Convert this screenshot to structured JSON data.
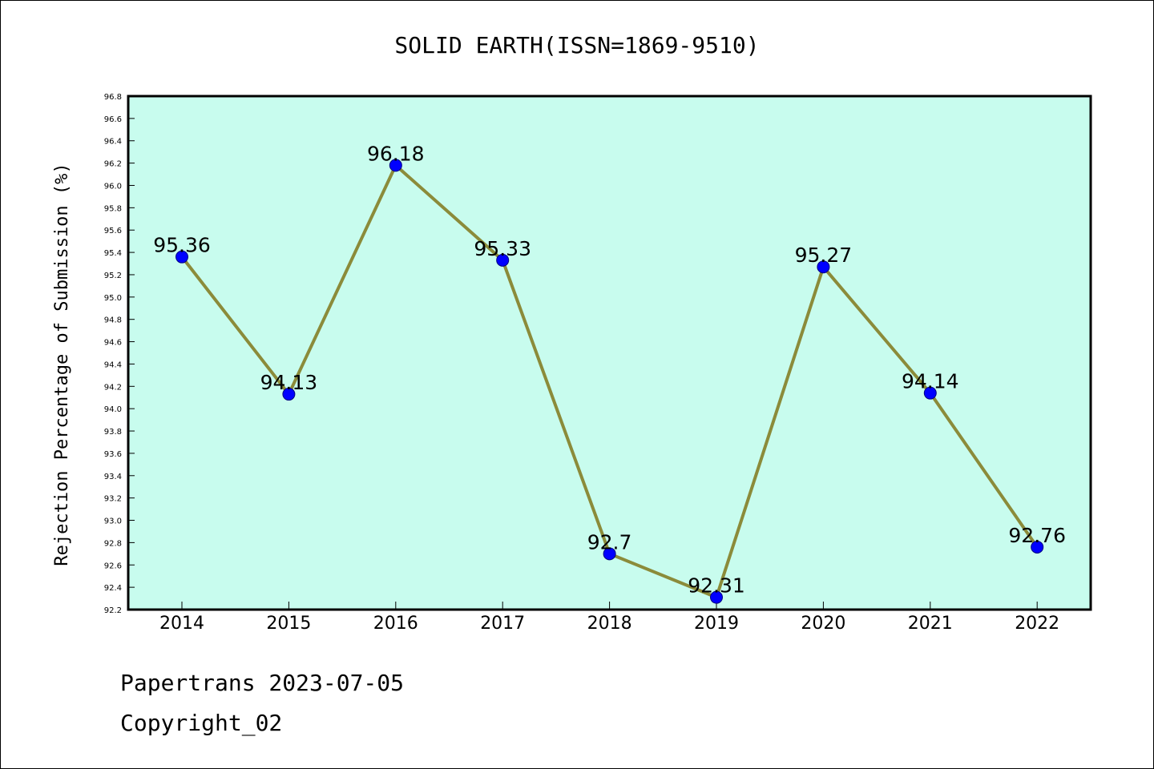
{
  "chart_data": {
    "type": "line",
    "title": "SOLID EARTH(ISSN=1869-9510)",
    "xlabel": "",
    "ylabel": "Rejection Percentage of Submission (%)",
    "categories": [
      "2014",
      "2015",
      "2016",
      "2017",
      "2018",
      "2019",
      "2020",
      "2021",
      "2022"
    ],
    "series": [
      {
        "values": [
          95.36,
          94.13,
          96.18,
          95.33,
          92.7,
          92.31,
          95.27,
          94.14,
          92.76
        ],
        "labels": [
          "95.36",
          "94.13",
          "96.18",
          "95.33",
          "92.7",
          "92.31",
          "95.27",
          "94.14",
          "92.76"
        ]
      }
    ],
    "ylim": [
      92.2,
      96.8
    ],
    "yticks": [
      "92.2",
      "92.4",
      "92.6",
      "92.8",
      "93.0",
      "93.2",
      "93.4",
      "93.6",
      "93.8",
      "94.0",
      "94.2",
      "94.4",
      "94.6",
      "94.8",
      "95.0",
      "95.2",
      "95.4",
      "95.6",
      "95.8",
      "96.0",
      "96.2",
      "96.4",
      "96.6",
      "96.8"
    ],
    "grid": false,
    "legend": "none",
    "colors": {
      "plot_background": "#c8fcee",
      "line": "#8b8b3a",
      "marker_fill": "#0000ff",
      "marker_edge": "#000080",
      "axis": "#000000"
    }
  },
  "footer": {
    "line1": "Papertrans 2023-07-05",
    "line2": "Copyright_02"
  }
}
